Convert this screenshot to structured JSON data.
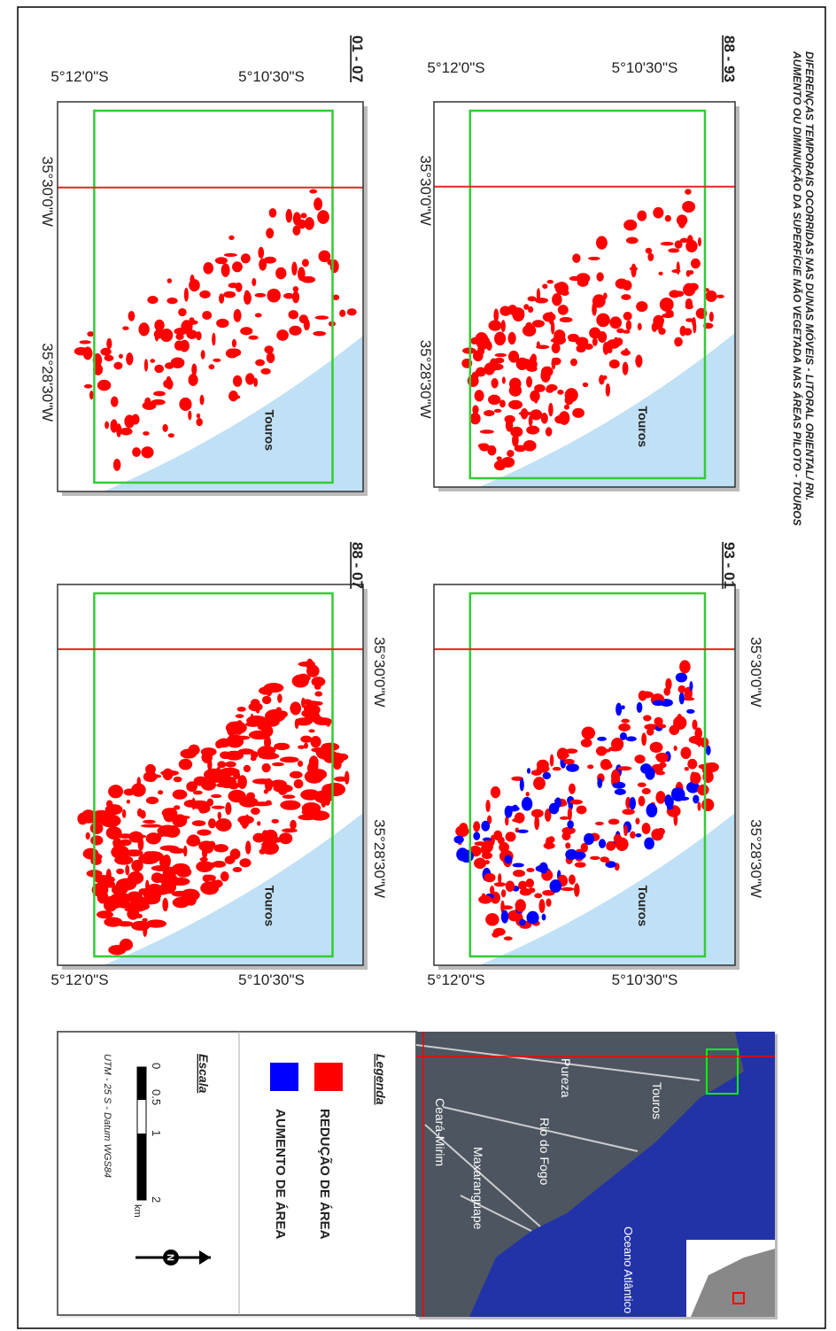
{
  "header": {
    "title": "DIFERENÇAS TEMPORAIS OCORRIDAS NAS DUNAS MÓVEIS - LITORAL ORIENTAL/ RN.",
    "subtitle": "AUMENTO OU DIMINUIÇÃO DA SUPERFÍCIE NÃO VEGETADA NAS ÁREAS PILOTO - TOUROS"
  },
  "panels": [
    {
      "label": "88 - 93"
    },
    {
      "label": "93 - 01"
    },
    {
      "label": "01 - 07"
    },
    {
      "label": "88 - 07"
    }
  ],
  "coordinates": {
    "lat_south": "5°12'0\"S",
    "lat_north": "5°10'30\"S",
    "lon_west": "35°30'0\"W",
    "lon_east": "35°28'30\"W"
  },
  "place": "Touros",
  "legend": {
    "title": "Legenda",
    "items": [
      "REDUÇÃO DE ÁREA",
      "AUMENTO DE ÁREA"
    ],
    "scale_title": "Escala",
    "scale_ticks": [
      "0",
      "0.5",
      "1",
      "2"
    ],
    "scale_unit": "km",
    "projection": "UTM - 25 S - Datum WGS84"
  },
  "inset": {
    "labels": [
      "Touros",
      "Pureza",
      "Rio do Fogo",
      "Maxaranguape",
      "Ceará-Mirim",
      "Oceano Atlântico"
    ]
  }
}
